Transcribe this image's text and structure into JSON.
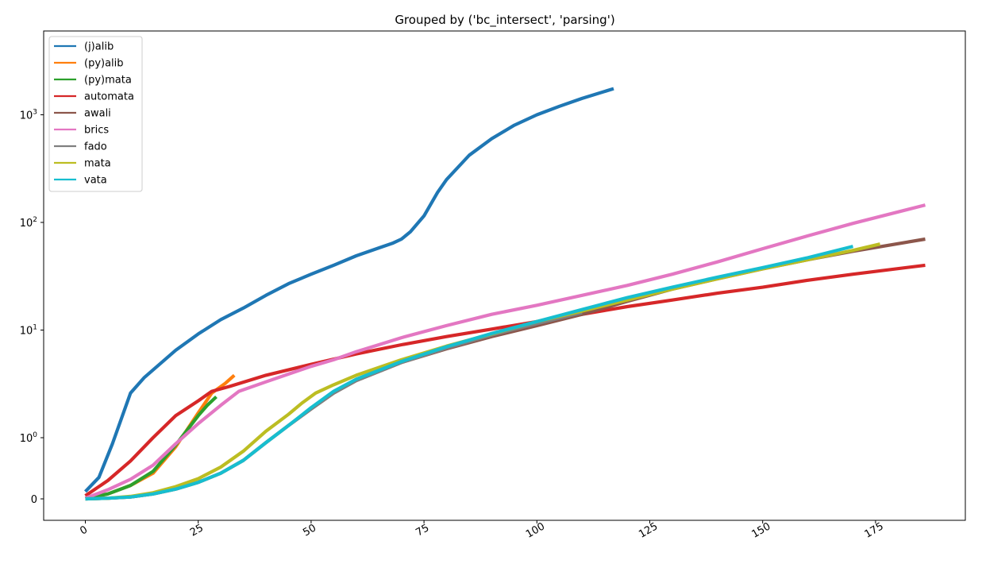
{
  "chart_data": {
    "type": "line",
    "title": "Grouped by ('bc_intersect', 'parsing')",
    "xlabel": "",
    "ylabel": "",
    "xlim": [
      -9,
      195
    ],
    "x_ticks": [
      0,
      25,
      50,
      75,
      100,
      125,
      150,
      175
    ],
    "x_tick_labels": [
      "0",
      "25",
      "50",
      "75",
      "100",
      "125",
      "150",
      "175"
    ],
    "y_scale": "symlog",
    "y_ticks": [
      0,
      1,
      10,
      100,
      1000
    ],
    "y_tick_labels": [
      {
        "base": "0",
        "exp": ""
      },
      {
        "base": "10",
        "exp": "0"
      },
      {
        "base": "10",
        "exp": "1"
      },
      {
        "base": "10",
        "exp": "2"
      },
      {
        "base": "10",
        "exp": "3"
      }
    ],
    "grid": false,
    "legend_position": "top-left",
    "series": [
      {
        "name": "(j)alib",
        "color": "#1f77b4",
        "points": [
          [
            0,
            0.12
          ],
          [
            3,
            0.35
          ],
          [
            6,
            0.9
          ],
          [
            10,
            2.6
          ],
          [
            13,
            3.6
          ],
          [
            20,
            6.5
          ],
          [
            25,
            9.2
          ],
          [
            30,
            12.5
          ],
          [
            35,
            16
          ],
          [
            40,
            21
          ],
          [
            45,
            27
          ],
          [
            50,
            33
          ],
          [
            55,
            40
          ],
          [
            60,
            49
          ],
          [
            65,
            58
          ],
          [
            68,
            64
          ],
          [
            70,
            70
          ],
          [
            72,
            82
          ],
          [
            75,
            115
          ],
          [
            78,
            190
          ],
          [
            80,
            250
          ],
          [
            85,
            420
          ],
          [
            90,
            600
          ],
          [
            95,
            800
          ],
          [
            100,
            1000
          ],
          [
            105,
            1200
          ],
          [
            110,
            1420
          ],
          [
            117,
            1750
          ]
        ]
      },
      {
        "name": "(py)alib",
        "color": "#ff7f0e",
        "points": [
          [
            0,
            0.01
          ],
          [
            5,
            0.08
          ],
          [
            10,
            0.22
          ],
          [
            15,
            0.42
          ],
          [
            20,
            0.85
          ],
          [
            25,
            1.7
          ],
          [
            28,
            2.6
          ],
          [
            31,
            3.2
          ],
          [
            33,
            3.8
          ]
        ]
      },
      {
        "name": "(py)mata",
        "color": "#2ca02c",
        "points": [
          [
            0,
            0.01
          ],
          [
            5,
            0.08
          ],
          [
            10,
            0.22
          ],
          [
            15,
            0.45
          ],
          [
            20,
            0.88
          ],
          [
            25,
            1.6
          ],
          [
            27,
            2.0
          ],
          [
            29,
            2.4
          ]
        ]
      },
      {
        "name": "automata",
        "color": "#d62728",
        "points": [
          [
            0,
            0.05
          ],
          [
            5,
            0.3
          ],
          [
            10,
            0.62
          ],
          [
            15,
            1.0
          ],
          [
            20,
            1.6
          ],
          [
            25,
            2.2
          ],
          [
            28,
            2.7
          ],
          [
            32,
            3.0
          ],
          [
            40,
            3.8
          ],
          [
            50,
            4.8
          ],
          [
            60,
            6.0
          ],
          [
            70,
            7.3
          ],
          [
            80,
            8.7
          ],
          [
            90,
            10.2
          ],
          [
            100,
            12
          ],
          [
            110,
            14
          ],
          [
            120,
            16.5
          ],
          [
            130,
            19
          ],
          [
            140,
            22
          ],
          [
            150,
            25
          ],
          [
            160,
            29
          ],
          [
            170,
            33
          ],
          [
            186,
            40
          ]
        ]
      },
      {
        "name": "awali",
        "color": "#8c564b",
        "points": [
          [
            0,
            0.0
          ],
          [
            5,
            0.01
          ],
          [
            10,
            0.03
          ],
          [
            15,
            0.08
          ],
          [
            20,
            0.16
          ],
          [
            25,
            0.27
          ],
          [
            30,
            0.42
          ],
          [
            35,
            0.63
          ],
          [
            40,
            0.92
          ],
          [
            45,
            1.3
          ],
          [
            50,
            1.85
          ],
          [
            55,
            2.6
          ],
          [
            60,
            3.4
          ],
          [
            70,
            5.0
          ],
          [
            80,
            6.7
          ],
          [
            90,
            8.7
          ],
          [
            100,
            11
          ],
          [
            110,
            14
          ],
          [
            120,
            18.5
          ],
          [
            130,
            24
          ],
          [
            140,
            30
          ],
          [
            150,
            37
          ],
          [
            160,
            45
          ],
          [
            170,
            54
          ],
          [
            186,
            70
          ]
        ]
      },
      {
        "name": "brics",
        "color": "#e377c2",
        "points": [
          [
            0,
            0.01
          ],
          [
            5,
            0.15
          ],
          [
            10,
            0.32
          ],
          [
            15,
            0.55
          ],
          [
            20,
            0.9
          ],
          [
            25,
            1.35
          ],
          [
            30,
            2.0
          ],
          [
            34,
            2.7
          ],
          [
            40,
            3.3
          ],
          [
            45,
            3.9
          ],
          [
            50,
            4.6
          ],
          [
            55,
            5.3
          ],
          [
            60,
            6.3
          ],
          [
            65,
            7.3
          ],
          [
            70,
            8.5
          ],
          [
            80,
            11
          ],
          [
            90,
            14
          ],
          [
            100,
            17
          ],
          [
            110,
            21
          ],
          [
            120,
            26
          ],
          [
            130,
            33
          ],
          [
            140,
            43
          ],
          [
            150,
            57
          ],
          [
            160,
            75
          ],
          [
            170,
            98
          ],
          [
            186,
            145
          ]
        ]
      },
      {
        "name": "fado",
        "color": "#7f7f7f",
        "points": [
          [
            0,
            0.0
          ],
          [
            5,
            0.01
          ],
          [
            10,
            0.03
          ],
          [
            15,
            0.08
          ],
          [
            20,
            0.16
          ],
          [
            25,
            0.27
          ],
          [
            30,
            0.42
          ],
          [
            35,
            0.63
          ],
          [
            40,
            0.92
          ],
          [
            45,
            1.3
          ],
          [
            50,
            1.85
          ],
          [
            55,
            2.6
          ],
          [
            60,
            3.4
          ],
          [
            70,
            5.0
          ],
          [
            80,
            6.8
          ],
          [
            90,
            9
          ],
          [
            100,
            11.5
          ],
          [
            110,
            14.5
          ]
        ]
      },
      {
        "name": "mata",
        "color": "#bcbd22",
        "points": [
          [
            0,
            0.0
          ],
          [
            5,
            0.01
          ],
          [
            10,
            0.04
          ],
          [
            15,
            0.1
          ],
          [
            20,
            0.2
          ],
          [
            25,
            0.33
          ],
          [
            30,
            0.52
          ],
          [
            35,
            0.78
          ],
          [
            40,
            1.15
          ],
          [
            45,
            1.65
          ],
          [
            48,
            2.1
          ],
          [
            51,
            2.6
          ],
          [
            55,
            3.1
          ],
          [
            60,
            3.8
          ],
          [
            70,
            5.3
          ],
          [
            80,
            7.1
          ],
          [
            90,
            9.2
          ],
          [
            100,
            12
          ],
          [
            110,
            15
          ],
          [
            120,
            19
          ],
          [
            130,
            24
          ],
          [
            140,
            30
          ],
          [
            150,
            37
          ],
          [
            160,
            45
          ],
          [
            170,
            55
          ],
          [
            176,
            63
          ]
        ]
      },
      {
        "name": "vata",
        "color": "#17becf",
        "points": [
          [
            0,
            0.0
          ],
          [
            5,
            0.01
          ],
          [
            10,
            0.03
          ],
          [
            15,
            0.08
          ],
          [
            20,
            0.16
          ],
          [
            25,
            0.27
          ],
          [
            30,
            0.42
          ],
          [
            35,
            0.63
          ],
          [
            40,
            0.92
          ],
          [
            45,
            1.3
          ],
          [
            50,
            1.9
          ],
          [
            55,
            2.7
          ],
          [
            60,
            3.5
          ],
          [
            70,
            5.1
          ],
          [
            80,
            7.0
          ],
          [
            90,
            9.3
          ],
          [
            100,
            12
          ],
          [
            110,
            15.5
          ],
          [
            120,
            20
          ],
          [
            130,
            25
          ],
          [
            140,
            31
          ],
          [
            150,
            38
          ],
          [
            160,
            47
          ],
          [
            170,
            60
          ]
        ]
      }
    ]
  }
}
